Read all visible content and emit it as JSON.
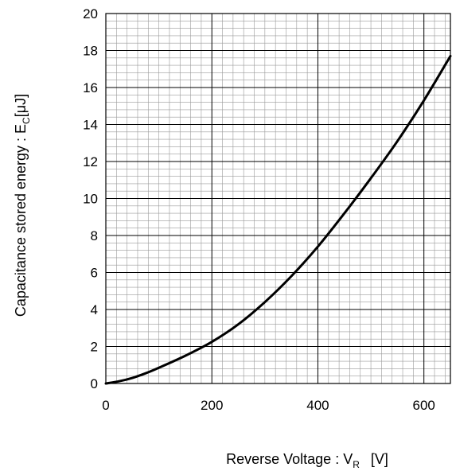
{
  "chart_data": {
    "type": "line",
    "title": "",
    "xlabel": {
      "main": "Reverse Voltage : V",
      "sub": "R",
      "unit": "[V]"
    },
    "ylabel": {
      "main": "Capacitance stored energy : E",
      "sub": "C",
      "unit": "[μJ]"
    },
    "xlim": [
      0,
      650
    ],
    "ylim": [
      0,
      20
    ],
    "x_ticks": [
      "0",
      "200",
      "400",
      "600"
    ],
    "y_ticks": [
      "0",
      "2",
      "4",
      "6",
      "8",
      "10",
      "12",
      "14",
      "16",
      "18",
      "20"
    ],
    "x_major_step": 200,
    "x_minor_step": 20,
    "y_major_step": 2,
    "y_minor_step": 0.4,
    "grid": true,
    "legend": "none",
    "series": [
      {
        "color": "#000000",
        "x": [
          0,
          25,
          50,
          75,
          100,
          150,
          200,
          250,
          300,
          350,
          400,
          450,
          500,
          550,
          600,
          650
        ],
        "y": [
          0,
          0.12,
          0.3,
          0.55,
          0.85,
          1.5,
          2.25,
          3.2,
          4.4,
          5.8,
          7.4,
          9.2,
          11.1,
          13.1,
          15.3,
          17.7
        ]
      }
    ]
  }
}
